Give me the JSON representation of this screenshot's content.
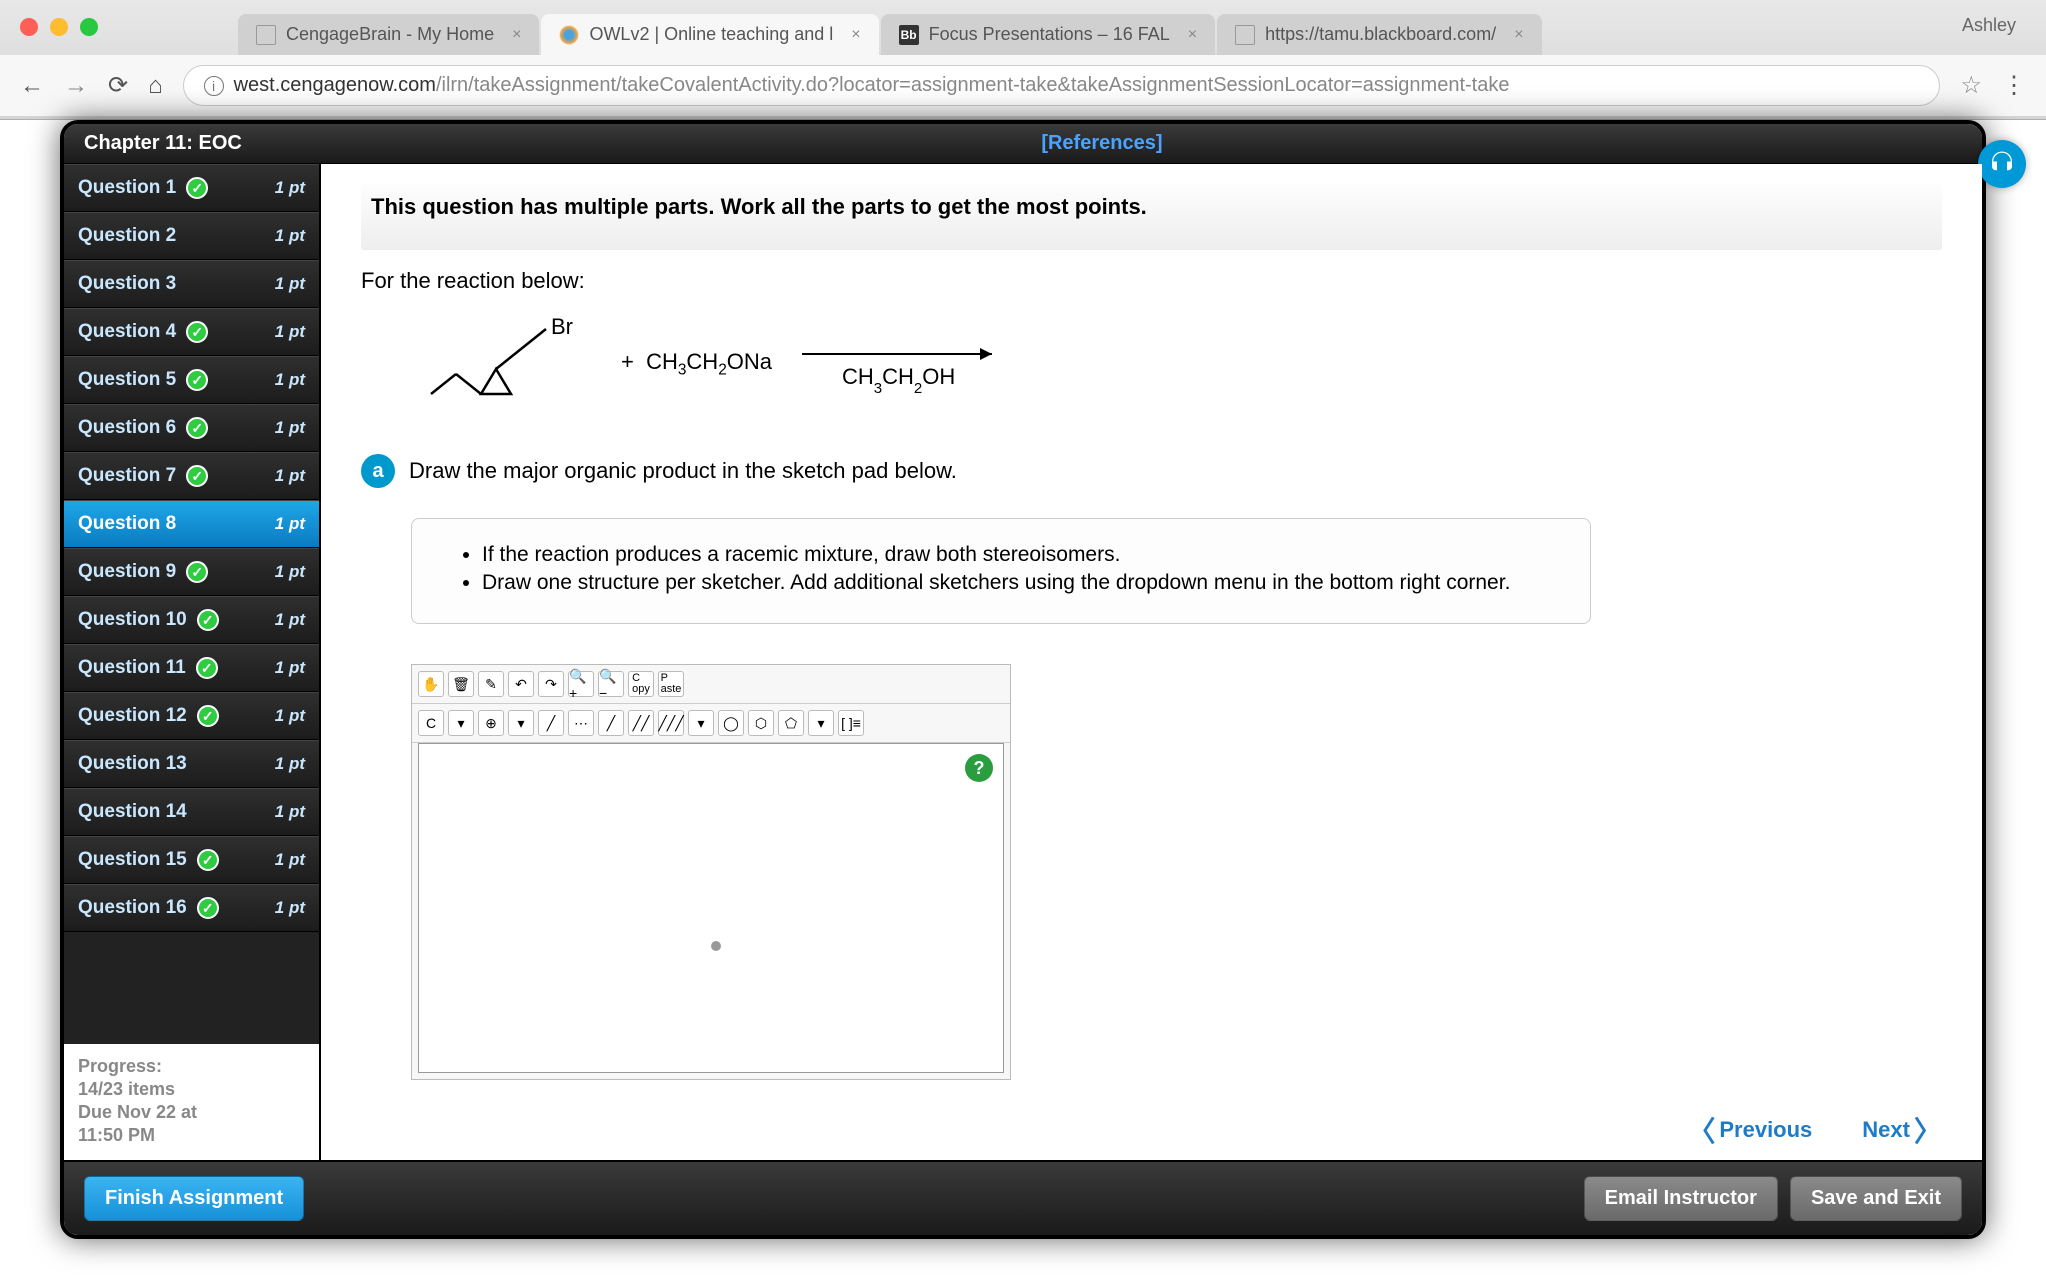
{
  "browser": {
    "user": "Ashley",
    "tabs": [
      {
        "label": "CengageBrain - My Home",
        "active": false,
        "icon": "page"
      },
      {
        "label": "OWLv2 | Online teaching and l",
        "active": true,
        "icon": "owl"
      },
      {
        "label": "Focus Presentations – 16 FAL",
        "active": false,
        "icon": "bb"
      },
      {
        "label": "https://tamu.blackboard.com/",
        "active": false,
        "icon": "page"
      }
    ],
    "url_host": "west.cengagenow.com",
    "url_path": "/ilrn/takeAssignment/takeCovalentActivity.do?locator=assignment-take&takeAssignmentSessionLocator=assignment-take"
  },
  "header": {
    "chapter": "Chapter 11: EOC",
    "references": "[References]"
  },
  "questions": [
    {
      "label": "Question 1",
      "pts": "1 pt",
      "done": true,
      "active": false
    },
    {
      "label": "Question 2",
      "pts": "1 pt",
      "done": false,
      "active": false
    },
    {
      "label": "Question 3",
      "pts": "1 pt",
      "done": false,
      "active": false
    },
    {
      "label": "Question 4",
      "pts": "1 pt",
      "done": true,
      "active": false
    },
    {
      "label": "Question 5",
      "pts": "1 pt",
      "done": true,
      "active": false
    },
    {
      "label": "Question 6",
      "pts": "1 pt",
      "done": true,
      "active": false
    },
    {
      "label": "Question 7",
      "pts": "1 pt",
      "done": true,
      "active": false
    },
    {
      "label": "Question 8",
      "pts": "1 pt",
      "done": false,
      "active": true
    },
    {
      "label": "Question 9",
      "pts": "1 pt",
      "done": true,
      "active": false
    },
    {
      "label": "Question 10",
      "pts": "1 pt",
      "done": true,
      "active": false
    },
    {
      "label": "Question 11",
      "pts": "1 pt",
      "done": true,
      "active": false
    },
    {
      "label": "Question 12",
      "pts": "1 pt",
      "done": true,
      "active": false
    },
    {
      "label": "Question 13",
      "pts": "1 pt",
      "done": false,
      "active": false
    },
    {
      "label": "Question 14",
      "pts": "1 pt",
      "done": false,
      "active": false
    },
    {
      "label": "Question 15",
      "pts": "1 pt",
      "done": true,
      "active": false
    },
    {
      "label": "Question 16",
      "pts": "1 pt",
      "done": true,
      "active": false
    }
  ],
  "progress": {
    "label": "Progress:",
    "items": "14/23 items",
    "due": "Due Nov 22 at",
    "time": "11:50 PM"
  },
  "content": {
    "banner": "This question has multiple parts. Work all the parts to get the most points.",
    "subhead": "For the reaction below:",
    "reaction": {
      "reagent_label": "Br",
      "plus_reagent": "CH3CH2ONa",
      "arrow_over": "CH3CH2OH"
    },
    "part_letter": "a",
    "part_text": "Draw the major organic product in the sketch pad below.",
    "hints": [
      "If the reaction produces a racemic mixture, draw both stereoisomers.",
      "Draw one structure per sketcher. Add additional sketchers using the dropdown menu in the bottom right corner."
    ],
    "toolbar1": [
      "✋",
      "🗑",
      "✎",
      "↶",
      "↷",
      "🔍+",
      "🔍−",
      "C",
      "P"
    ],
    "toolbar1_sub": [
      "",
      "",
      "",
      "",
      "",
      "",
      "",
      "opy",
      "aste"
    ],
    "toolbar2": [
      "C",
      "▾",
      "⊕",
      "▾",
      "╱",
      "⋯",
      "╱",
      "╱╱",
      "╱╱╱",
      "▾",
      "◯",
      "⬡",
      "⬠",
      "▾",
      "[ ]≡"
    ],
    "prev": "Previous",
    "next": "Next"
  },
  "footer": {
    "finish": "Finish Assignment",
    "email": "Email Instructor",
    "save": "Save and Exit"
  },
  "colors": {
    "accent_blue": "#1ea7e8",
    "link_blue": "#1e7bc8",
    "check_green": "#2ecc40",
    "dark_bg": "#1a1a1a"
  }
}
